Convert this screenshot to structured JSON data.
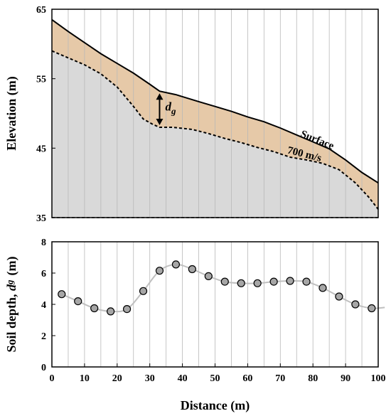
{
  "chart_data": [
    {
      "type": "area",
      "ylabel": "Elevation (m)",
      "ylim": [
        35,
        65
      ],
      "yticks": [
        "35",
        "45",
        "55",
        "65"
      ],
      "xlim": [
        0,
        100
      ],
      "vertical_grid_step": 5,
      "series": [
        {
          "name": "Surface",
          "x": [
            0,
            5,
            10,
            15,
            20,
            25,
            30,
            33,
            38,
            45,
            50,
            55,
            60,
            65,
            70,
            75,
            80,
            85,
            90,
            95,
            100
          ],
          "y": [
            63.5,
            61.8,
            60.2,
            58.6,
            57.2,
            55.8,
            54.2,
            53.2,
            52.7,
            51.7,
            51.0,
            50.3,
            49.5,
            48.8,
            47.9,
            46.9,
            45.9,
            44.9,
            43.3,
            41.5,
            40.0
          ]
        },
        {
          "name": "700 m/s",
          "x": [
            0,
            5,
            10,
            15,
            20,
            25,
            28,
            31,
            33,
            37,
            43,
            48,
            53,
            58,
            63,
            68,
            73,
            78,
            83,
            88,
            93,
            97,
            100
          ],
          "y": [
            59.0,
            58.0,
            57.0,
            55.7,
            53.8,
            51.0,
            49.2,
            48.4,
            48.0,
            48.0,
            47.7,
            47.1,
            46.4,
            45.8,
            45.1,
            44.5,
            43.7,
            43.3,
            42.8,
            41.9,
            40.0,
            38.0,
            36.2
          ]
        }
      ],
      "annotations": {
        "surface_label": "Surface",
        "velocity_label": "700 m/s",
        "depth_symbol": "d",
        "depth_subscript": "g"
      },
      "colors": {
        "soil_fill": "#e6c9a8",
        "rock_fill": "#d9d9d9",
        "grid": "#b8b8b8"
      }
    },
    {
      "type": "line",
      "ylabel_main": "Soil depth, ",
      "ylabel_symbol": "d",
      "ylabel_subscript": "g",
      "ylabel_unit": "(m)",
      "xlabel": "Distance (m)",
      "xlim": [
        0,
        100
      ],
      "ylim": [
        0,
        8
      ],
      "xticks": [
        "0",
        "10",
        "20",
        "30",
        "40",
        "50",
        "60",
        "70",
        "80",
        "90",
        "100"
      ],
      "yticks": [
        "0",
        "2",
        "4",
        "6",
        "8"
      ],
      "points": {
        "x": [
          3,
          8,
          13,
          18,
          23,
          28,
          33,
          38,
          43,
          48,
          53,
          58,
          63,
          68,
          73,
          78,
          83,
          88,
          93,
          98
        ],
        "y": [
          4.65,
          4.2,
          3.75,
          3.55,
          3.7,
          4.85,
          6.15,
          6.55,
          6.25,
          5.8,
          5.45,
          5.35,
          5.35,
          5.45,
          5.5,
          5.45,
          5.05,
          4.5,
          4.0,
          3.75
        ]
      },
      "curve_extension": {
        "x": [
          100,
          102
        ],
        "y": [
          3.75,
          3.8
        ]
      },
      "colors": {
        "marker_fill": "#a6a6a6",
        "curve": "#c0c0c0",
        "grid": "#b8b8b8"
      }
    }
  ]
}
